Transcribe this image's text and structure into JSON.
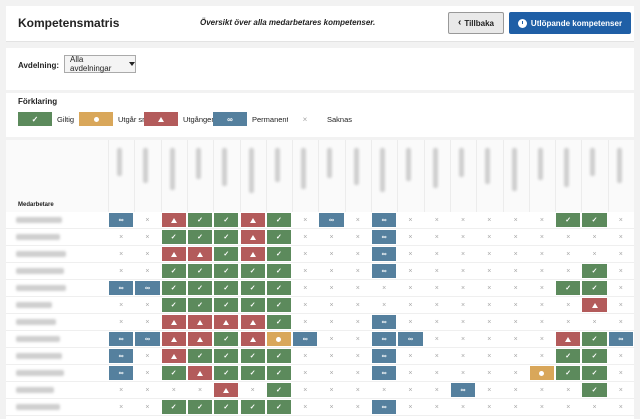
{
  "header": {
    "title": "Kompetensmatris",
    "subtitle": "Översikt över alla medarbetares kompetenser.",
    "back_label": "Tillbaka",
    "expiring_label": "Utlöpande kompetenser"
  },
  "filter": {
    "label": "Avdelning:",
    "selected": "Alla avdelningar"
  },
  "legend": {
    "title": "Förklaring",
    "items": [
      {
        "key": "g",
        "label": "Giltig",
        "glyph": "✓",
        "color": "#5c8a5c"
      },
      {
        "key": "y",
        "label": "Utgår snart",
        "glyph": "dot",
        "color": "#d9a75a"
      },
      {
        "key": "r",
        "label": "Utgången",
        "glyph": "tri",
        "color": "#b35b5b"
      },
      {
        "key": "b",
        "label": "Permanent",
        "glyph": "∞",
        "color": "#55809e"
      },
      {
        "key": "x",
        "label": "Saknas",
        "glyph": "×",
        "color": "#ffffff"
      }
    ]
  },
  "matrix": {
    "employee_header": "Medarbetare",
    "column_count": 20,
    "rows": [
      [
        "b",
        "x",
        "r",
        "g",
        "g",
        "r",
        "g",
        "x",
        "b",
        "x",
        "b",
        "x",
        "x",
        "x",
        "x",
        "x",
        "x",
        "g",
        "g",
        "x"
      ],
      [
        "x",
        "x",
        "g",
        "g",
        "g",
        "r",
        "g",
        "x",
        "x",
        "x",
        "b",
        "x",
        "x",
        "x",
        "x",
        "x",
        "x",
        "x",
        "x",
        "x"
      ],
      [
        "x",
        "x",
        "r",
        "r",
        "g",
        "r",
        "g",
        "x",
        "x",
        "x",
        "b",
        "x",
        "x",
        "x",
        "x",
        "x",
        "x",
        "x",
        "x",
        "x"
      ],
      [
        "x",
        "x",
        "g",
        "g",
        "g",
        "g",
        "g",
        "x",
        "x",
        "x",
        "b",
        "x",
        "x",
        "x",
        "x",
        "x",
        "x",
        "x",
        "g",
        "x"
      ],
      [
        "b",
        "b",
        "g",
        "g",
        "g",
        "g",
        "g",
        "x",
        "x",
        "x",
        "x",
        "x",
        "x",
        "x",
        "x",
        "x",
        "x",
        "g",
        "g",
        "x"
      ],
      [
        "x",
        "x",
        "g",
        "g",
        "g",
        "g",
        "g",
        "x",
        "x",
        "x",
        "x",
        "x",
        "x",
        "x",
        "x",
        "x",
        "x",
        "x",
        "r",
        "x"
      ],
      [
        "x",
        "x",
        "r",
        "r",
        "r",
        "r",
        "g",
        "x",
        "x",
        "x",
        "b",
        "x",
        "x",
        "x",
        "x",
        "x",
        "x",
        "x",
        "x",
        "x"
      ],
      [
        "b",
        "b",
        "r",
        "r",
        "g",
        "r",
        "y",
        "b",
        "x",
        "x",
        "b",
        "b",
        "x",
        "x",
        "x",
        "x",
        "x",
        "r",
        "g",
        "b"
      ],
      [
        "b",
        "x",
        "r",
        "g",
        "g",
        "g",
        "g",
        "x",
        "x",
        "x",
        "b",
        "x",
        "x",
        "x",
        "x",
        "x",
        "x",
        "g",
        "g",
        "x"
      ],
      [
        "b",
        "x",
        "g",
        "r",
        "g",
        "g",
        "g",
        "x",
        "x",
        "x",
        "b",
        "x",
        "x",
        "x",
        "x",
        "x",
        "y",
        "g",
        "g",
        "x"
      ],
      [
        "x",
        "x",
        "x",
        "x",
        "r",
        "x",
        "g",
        "x",
        "x",
        "x",
        "x",
        "x",
        "x",
        "b",
        "x",
        "x",
        "x",
        "x",
        "g",
        "x"
      ],
      [
        "x",
        "x",
        "g",
        "g",
        "g",
        "g",
        "g",
        "x",
        "x",
        "x",
        "b",
        "x",
        "x",
        "x",
        "x",
        "x",
        "x",
        "x",
        "x",
        "x"
      ]
    ]
  }
}
